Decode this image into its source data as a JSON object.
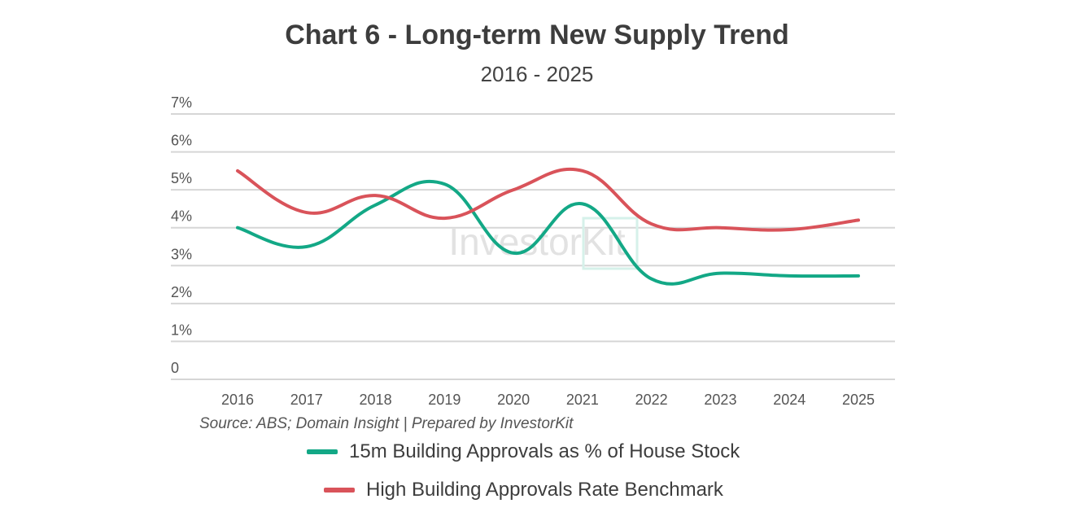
{
  "chart_data": {
    "type": "line",
    "title": "Chart 6 - Long-term New Supply Trend",
    "subtitle": "2016 - 2025",
    "source": "Source: ABS; Domain Insight | Prepared by InvestorKit",
    "watermark": "InvestorKit",
    "categories": [
      "2016",
      "2017",
      "2018",
      "2019",
      "2020",
      "2021",
      "2022",
      "2023",
      "2024",
      "2025"
    ],
    "y_ticks": [
      "0",
      "1%",
      "2%",
      "3%",
      "4%",
      "5%",
      "6%",
      "7%"
    ],
    "ylim": [
      0,
      7
    ],
    "grid": true,
    "legend_position": "bottom",
    "series": [
      {
        "name": "15m Building Approvals as % of House Stock",
        "color": "#13a886",
        "values": [
          4.0,
          3.5,
          4.6,
          5.15,
          3.33,
          4.63,
          2.65,
          2.8,
          2.73,
          2.73
        ]
      },
      {
        "name": "High Building Approvals Rate Benchmark",
        "color": "#d9535a",
        "values": [
          5.5,
          4.4,
          4.85,
          4.25,
          5.0,
          5.5,
          4.1,
          4.0,
          3.95,
          4.2
        ]
      }
    ]
  }
}
